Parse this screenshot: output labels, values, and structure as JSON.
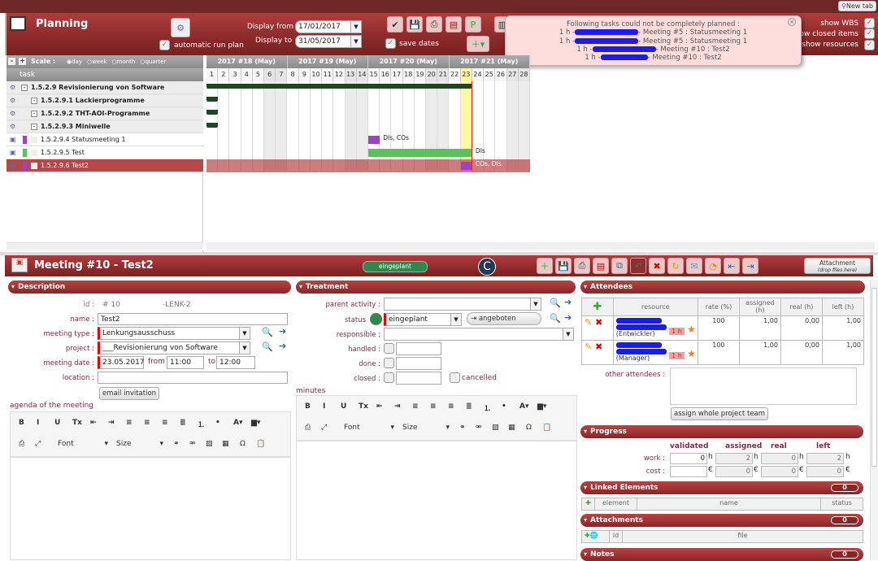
{
  "topbar": {
    "new_tab": "New tab"
  },
  "planning": {
    "title": "Planning",
    "auto_run_label": "automatic run plan",
    "display_from_label": "Display from",
    "display_from": "17/01/2017",
    "display_to_label": "Display to",
    "display_to": "31/05/2017",
    "save_dates_label": "save dates",
    "show_wbs": "show WBS",
    "show_closed": "show closed items",
    "show_resources": "show resources"
  },
  "popup": {
    "title": "Following tasks could not be completely planned :",
    "lines": [
      {
        "pre": "1 h -",
        "post": "- Meeting #5 : Statusmeeting 1"
      },
      {
        "pre": "1 h -",
        "post": "- Meeting #5 : Statusmeeting 1"
      },
      {
        "pre": "1 h -",
        "post": "- Meeting #10 : Test2"
      },
      {
        "pre": "1 h -",
        "post": "- Meeting #10 : Test2"
      }
    ]
  },
  "scale": {
    "label": "Scale :",
    "options": [
      "day",
      "week",
      "month",
      "quarter"
    ],
    "selected": "day",
    "task_header": "task"
  },
  "gantt": {
    "weeks": [
      "2017 #18 (May)",
      "2017 #19 (May)",
      "2017 #20 (May)",
      "2017 #21 (May)"
    ],
    "days": [
      1,
      2,
      3,
      4,
      5,
      6,
      7,
      8,
      9,
      10,
      11,
      12,
      13,
      14,
      15,
      16,
      17,
      18,
      19,
      20,
      21,
      22,
      23,
      24,
      25,
      26,
      27,
      28
    ],
    "today": 23,
    "weekends": [
      6,
      7,
      13,
      14,
      20,
      21,
      27,
      28
    ],
    "tasks": [
      {
        "label": "1.5.2.9 Revisionierung von Software",
        "bold": true,
        "indent": 0,
        "type": "group",
        "start": 1,
        "end": 23,
        "bar_label": ""
      },
      {
        "label": "1.5.2.9.1 Lackierprogramme",
        "bold": true,
        "indent": 1,
        "type": "group",
        "start": 1,
        "end": 1,
        "bar_label": ""
      },
      {
        "label": "1.5.2.9.2 THT-AOI-Programme",
        "bold": true,
        "indent": 1,
        "type": "group",
        "start": 1,
        "end": 1,
        "bar_label": ""
      },
      {
        "label": "1.5.2.9.3 Miniwelle",
        "bold": true,
        "indent": 1,
        "type": "group",
        "start": 1,
        "end": 1,
        "bar_label": ""
      },
      {
        "label": "1.5.2.9.4 Statusmeeting 1",
        "bold": false,
        "indent": 1,
        "type": "meeting",
        "color": "#a040c8",
        "start": 15,
        "end": 15,
        "bar_label": "DIs, COs"
      },
      {
        "label": "1.5.2.9.5 Test",
        "bold": false,
        "indent": 1,
        "type": "activity",
        "color": "#5cc05c",
        "start": 15,
        "end": 23,
        "bar_label": "DIs"
      },
      {
        "label": "1.5.2.9.6 Test2",
        "bold": false,
        "indent": 1,
        "type": "meeting",
        "color": "#a040c8",
        "start": 23,
        "end": 23,
        "bar_label": "COs, DIs",
        "selected": true
      }
    ]
  },
  "detail": {
    "title": "Meeting #10",
    "subtitle": "- Test2",
    "status_badge": "eingeplant",
    "attachment": "Attachment",
    "attachment_hint": "(drop files here)"
  },
  "description": {
    "header": "Description",
    "id_label": "id :",
    "id": "#  10",
    "ref": "-LENK-2",
    "name_label": "name :",
    "name": "Test2",
    "type_label": "meeting type :",
    "type": "Lenkungsausschuss",
    "project_label": "project :",
    "project": "___Revisionierung von Software",
    "date_label": "meeting date :",
    "date": "23.05.2017",
    "from_label": "from",
    "from": "11:00",
    "to_label": "to",
    "to": "12:00",
    "location_label": "location :",
    "location": "",
    "email_btn": "email invitation",
    "agenda_label": "agenda of the meeting"
  },
  "editor": {
    "font": "Font",
    "size": "Size"
  },
  "treatment": {
    "header": "Treatment",
    "parent_label": "parent activity :",
    "parent": "",
    "status_label": "status",
    "status": "eingeplant",
    "status_color": "#2e8a4a",
    "next_status": "angeboten",
    "responsible_label": "responsible :",
    "handled_label": "handled :",
    "done_label": "done :",
    "closed_label": "closed :",
    "cancelled_label": "cancelled",
    "minutes_label": "minutes"
  },
  "attendees": {
    "header": "Attendees",
    "columns": [
      "resource",
      "rate (%)",
      "assigned (h)",
      "real (h)",
      "left (h)"
    ],
    "rows": [
      {
        "role": "(Entwickler)",
        "badge": "1 h",
        "rate": "100",
        "assigned": "1,00",
        "real": "0,00",
        "left": "1,00"
      },
      {
        "role": "(Manager)",
        "badge": "1 h",
        "rate": "100",
        "assigned": "1,00",
        "real": "0,00",
        "left": "1,00"
      }
    ],
    "other_label": "other attendees :",
    "assign_btn": "assign whole project team"
  },
  "progress": {
    "header": "Progress",
    "columns": [
      "validated",
      "assigned",
      "real",
      "left"
    ],
    "work_label": "work :",
    "cost_label": "cost :",
    "work": [
      "0",
      "2",
      "0",
      "2"
    ],
    "cost": [
      "",
      "0",
      "0",
      "0"
    ],
    "work_unit": "h",
    "cost_unit": "€"
  },
  "linked": {
    "header": "Linked Elements",
    "count": "0",
    "columns": [
      "element",
      "name",
      "status"
    ]
  },
  "attachments": {
    "header": "Attachments",
    "count": "0",
    "columns": [
      "id",
      "file"
    ]
  },
  "notes": {
    "header": "Notes",
    "count": "0"
  }
}
